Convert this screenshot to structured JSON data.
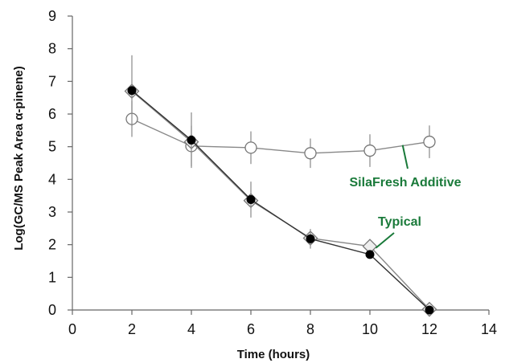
{
  "chart_data": {
    "type": "line",
    "title": "",
    "xlabel": "Time (hours)",
    "ylabel": "Log(GC/MS Peak Area α-pinene)",
    "xlim": [
      0,
      14
    ],
    "ylim": [
      0,
      9
    ],
    "x_ticks": [
      "0",
      "2",
      "4",
      "6",
      "8",
      "10",
      "12",
      "14"
    ],
    "y_ticks": [
      "0",
      "1",
      "2",
      "3",
      "4",
      "5",
      "6",
      "7",
      "8",
      "9"
    ],
    "grid": false,
    "series": [
      {
        "name": "SilaFresh Additive",
        "marker": "open-circle",
        "color": "#777777",
        "points": [
          {
            "x": 2,
            "y": 5.85,
            "err": 0.55
          },
          {
            "x": 4,
            "y": 5.02,
            "err": 0.62
          },
          {
            "x": 6,
            "y": 4.97,
            "err": 0.5
          },
          {
            "x": 8,
            "y": 4.8,
            "err": 0.45
          },
          {
            "x": 10,
            "y": 4.88,
            "err": 0.5
          },
          {
            "x": 12,
            "y": 5.15,
            "err": 0.5
          }
        ]
      },
      {
        "name": "Typical",
        "marker": "filled-circle",
        "color": "#000000",
        "points": [
          {
            "x": 2,
            "y": 6.72,
            "err": 1.08
          },
          {
            "x": 4,
            "y": 5.2,
            "err": 0.85
          },
          {
            "x": 6,
            "y": 3.38,
            "err": 0.55
          },
          {
            "x": 8,
            "y": 2.18,
            "err": 0.3
          },
          {
            "x": 10,
            "y": 1.7,
            "err": 0.0
          },
          {
            "x": 12,
            "y": 0.0,
            "err": 0.0
          }
        ]
      },
      {
        "name": "",
        "marker": "open-diamond",
        "color": "#777777",
        "points": [
          {
            "x": 2,
            "y": 6.7
          },
          {
            "x": 4,
            "y": 5.15
          },
          {
            "x": 6,
            "y": 3.35
          },
          {
            "x": 8,
            "y": 2.2
          },
          {
            "x": 10,
            "y": 1.95
          },
          {
            "x": 12,
            "y": 0.02
          }
        ]
      }
    ],
    "annotations": [
      {
        "text": "SilaFresh Additive",
        "color": "#1a7a3a",
        "points_to": {
          "x": 11.1,
          "y": 5.05
        }
      },
      {
        "text": "Typical",
        "color": "#1a7a3a",
        "points_to": {
          "x": 10.2,
          "y": 1.9
        }
      }
    ]
  }
}
